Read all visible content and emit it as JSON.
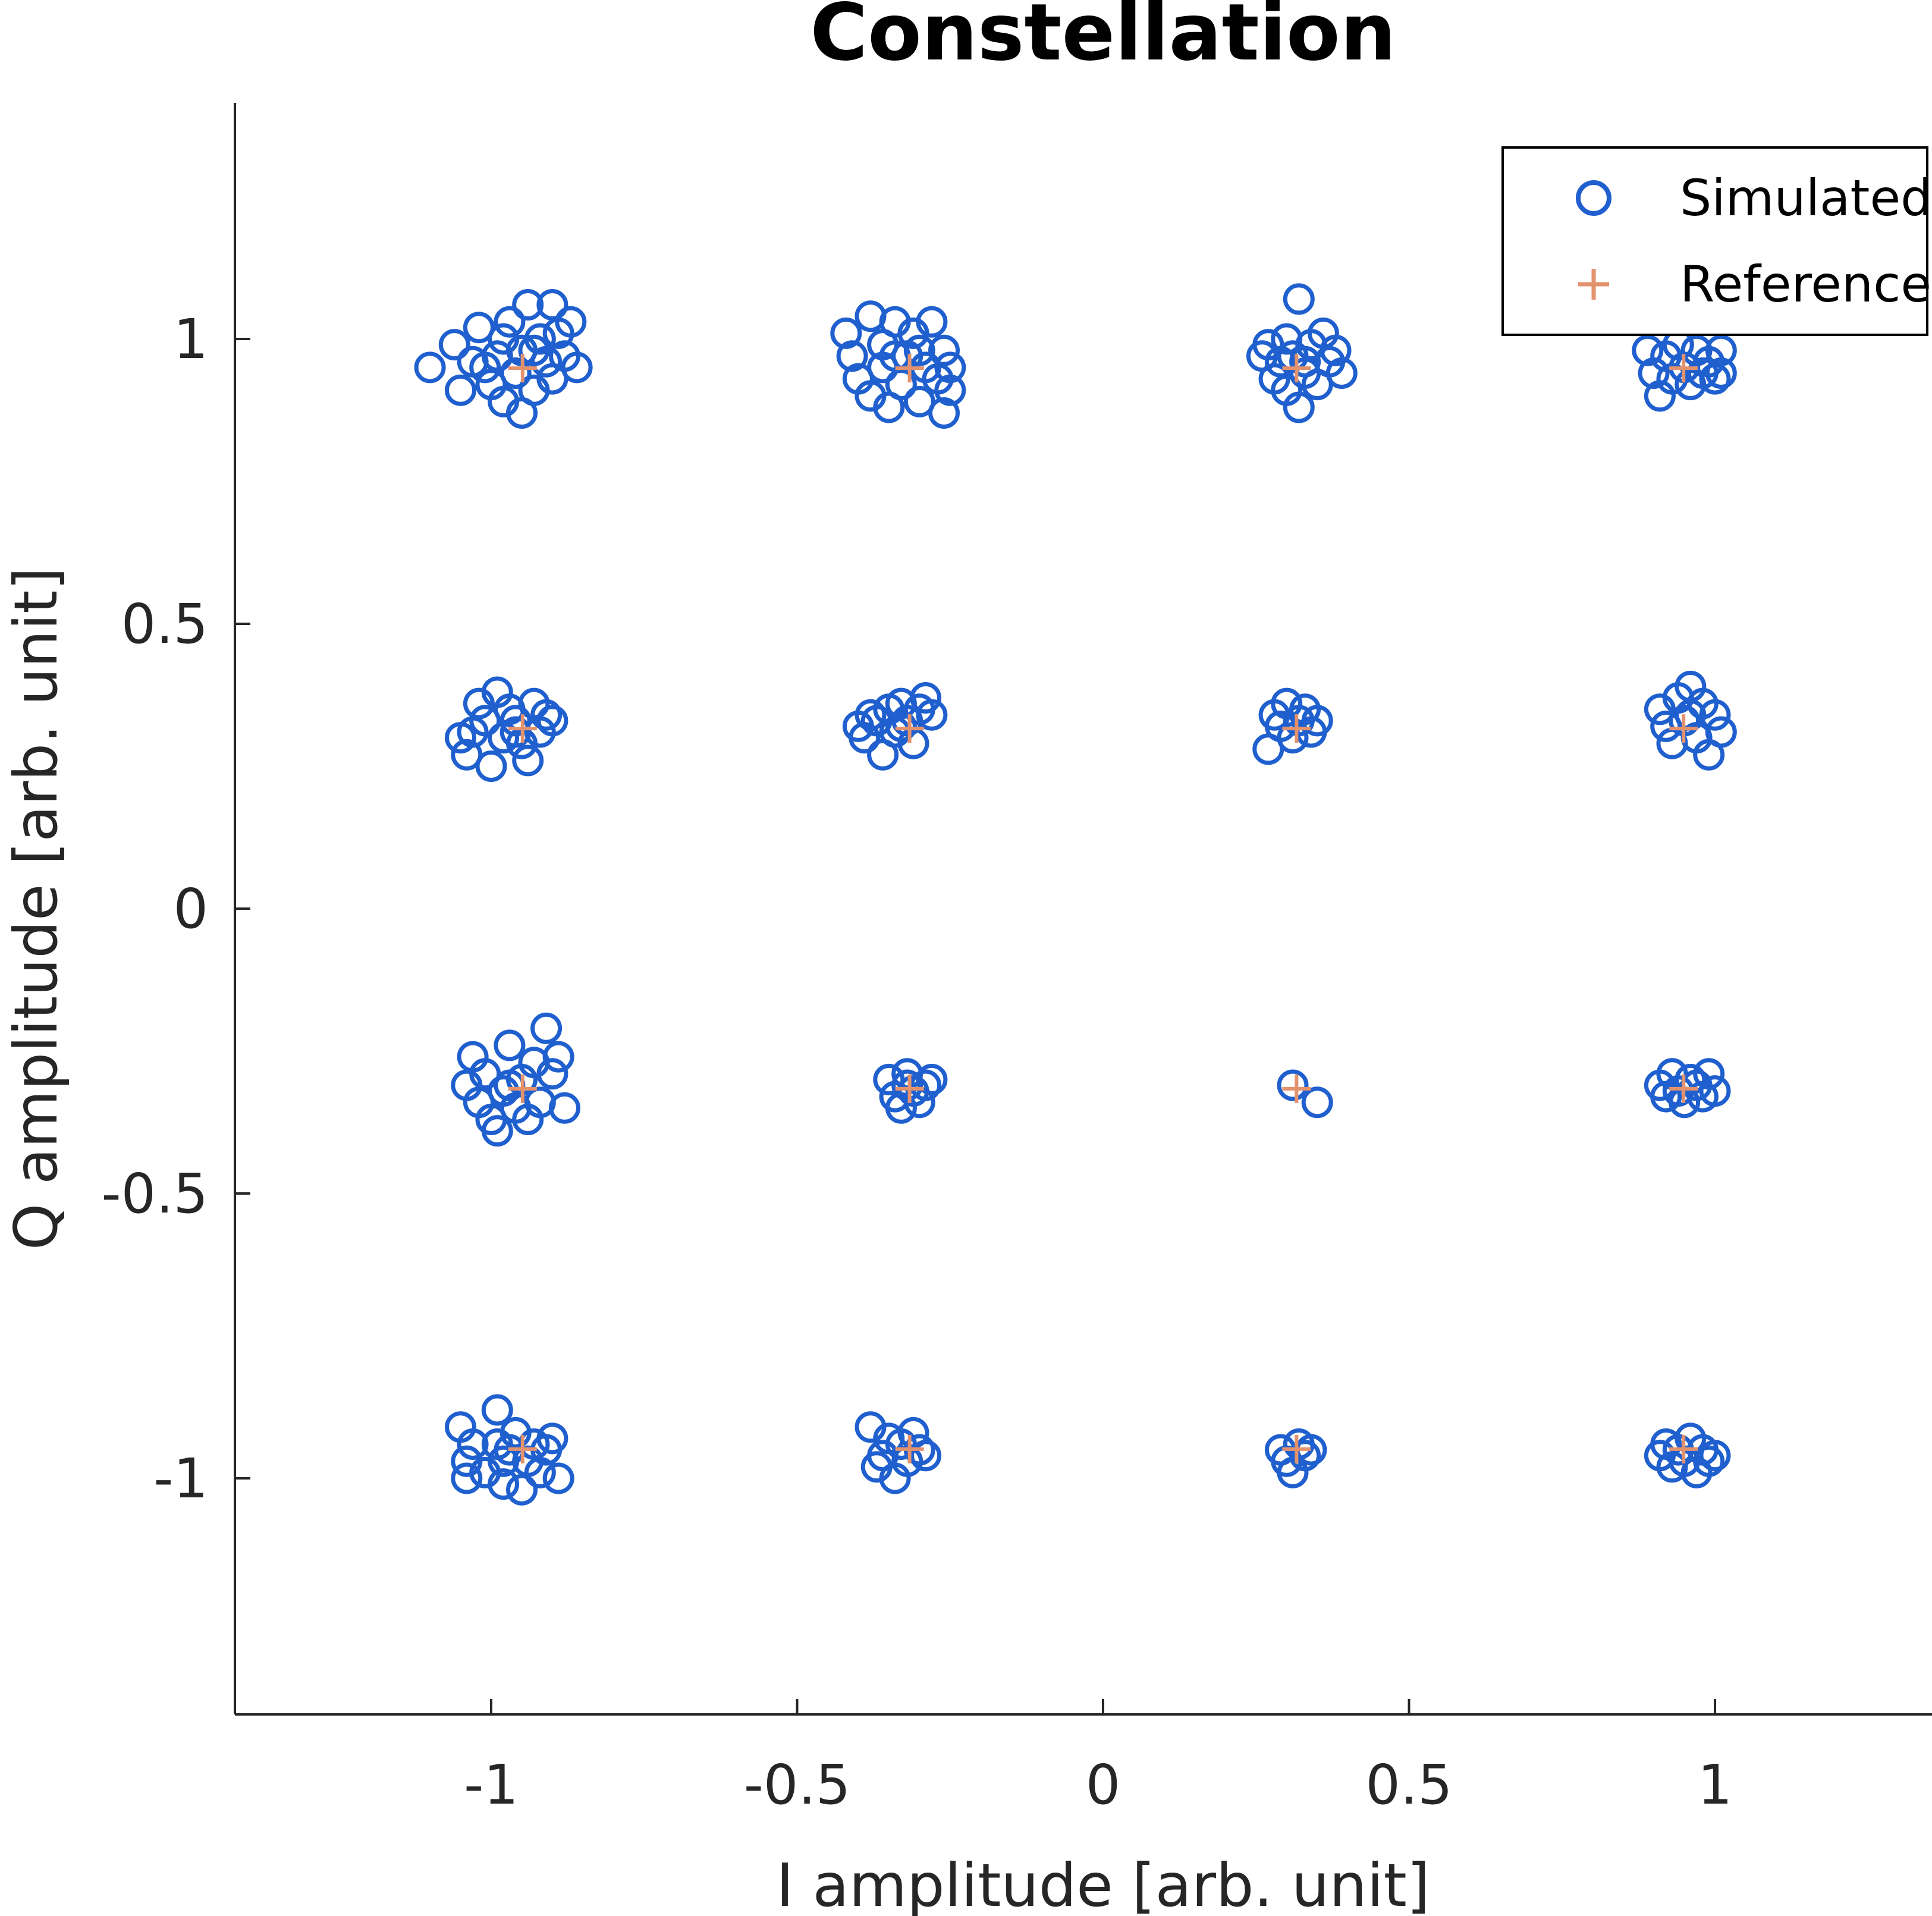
{
  "chart_data": {
    "type": "scatter",
    "title": "Constellation",
    "xlabel": "I amplitude [arb. unit]",
    "ylabel": "Q amplitude [arb. unit]",
    "xlim": [
      -1.42,
      1.42
    ],
    "ylim": [
      -1.42,
      1.42
    ],
    "xticks": [
      -1,
      -0.5,
      0,
      0.5,
      1
    ],
    "yticks": [
      -1,
      -0.5,
      0,
      0.5,
      1
    ],
    "xtick_labels": [
      "-1",
      "-0.5",
      "0",
      "0.5",
      "1"
    ],
    "ytick_labels": [
      "-1",
      "-0.5",
      "0",
      "0.5",
      "1"
    ],
    "grid": false,
    "legend_position": "top-right",
    "series": [
      {
        "name": "Simulated",
        "marker": "circle-open",
        "color": "#1f5fce",
        "points": [
          [
            -1.1,
            0.95
          ],
          [
            -1.06,
            0.99
          ],
          [
            -1.05,
            0.91
          ],
          [
            -1.03,
            0.96
          ],
          [
            -1.02,
            1.02
          ],
          [
            -1.0,
            0.92
          ],
          [
            -0.99,
            0.97
          ],
          [
            -0.98,
            0.89
          ],
          [
            -0.97,
            1.03
          ],
          [
            -0.96,
            0.94
          ],
          [
            -0.95,
            0.98
          ],
          [
            -0.95,
            0.87
          ],
          [
            -0.94,
            1.06
          ],
          [
            -0.93,
            0.91
          ],
          [
            -0.92,
            1.0
          ],
          [
            -0.91,
            0.96
          ],
          [
            -0.9,
            1.06
          ],
          [
            -0.9,
            0.93
          ],
          [
            -0.89,
            1.01
          ],
          [
            -0.88,
            0.97
          ],
          [
            -0.87,
            1.03
          ],
          [
            -0.86,
            0.95
          ],
          [
            -0.98,
            1.0
          ],
          [
            -1.01,
            0.95
          ],
          [
            -0.93,
            0.98
          ],
          [
            -0.42,
            1.01
          ],
          [
            -0.41,
            0.97
          ],
          [
            -0.4,
            0.93
          ],
          [
            -0.38,
            1.04
          ],
          [
            -0.38,
            0.9
          ],
          [
            -0.36,
            0.99
          ],
          [
            -0.36,
            0.95
          ],
          [
            -0.35,
            0.88
          ],
          [
            -0.34,
            1.03
          ],
          [
            -0.33,
            0.92
          ],
          [
            -0.32,
            0.97
          ],
          [
            -0.31,
            1.01
          ],
          [
            -0.3,
            0.89
          ],
          [
            -0.29,
            0.95
          ],
          [
            -0.28,
            1.03
          ],
          [
            -0.27,
            0.93
          ],
          [
            -0.26,
            0.87
          ],
          [
            -0.26,
            0.98
          ],
          [
            -0.25,
            0.91
          ],
          [
            -0.25,
            0.95
          ],
          [
            -0.34,
            0.97
          ],
          [
            -0.3,
            0.98
          ],
          [
            0.26,
            0.97
          ],
          [
            0.27,
            0.99
          ],
          [
            0.28,
            0.93
          ],
          [
            0.29,
            0.96
          ],
          [
            0.3,
            1.0
          ],
          [
            0.3,
            0.91
          ],
          [
            0.31,
            0.97
          ],
          [
            0.32,
            1.07
          ],
          [
            0.32,
            0.88
          ],
          [
            0.33,
            0.94
          ],
          [
            0.34,
            0.99
          ],
          [
            0.35,
            0.92
          ],
          [
            0.36,
            1.01
          ],
          [
            0.37,
            0.96
          ],
          [
            0.38,
            0.98
          ],
          [
            0.39,
            0.94
          ],
          [
            0.33,
            0.96
          ],
          [
            0.89,
            0.98
          ],
          [
            0.9,
            0.94
          ],
          [
            0.91,
            0.9
          ],
          [
            0.92,
            0.97
          ],
          [
            0.93,
            0.93
          ],
          [
            0.94,
            0.99
          ],
          [
            0.95,
            0.95
          ],
          [
            0.96,
            0.92
          ],
          [
            0.97,
            0.98
          ],
          [
            0.98,
            0.94
          ],
          [
            0.99,
            0.96
          ],
          [
            1.0,
            0.93
          ],
          [
            1.01,
            0.98
          ],
          [
            1.01,
            0.94
          ],
          [
            -1.05,
            0.3
          ],
          [
            -1.04,
            0.27
          ],
          [
            -1.03,
            0.31
          ],
          [
            -1.02,
            0.36
          ],
          [
            -1.01,
            0.33
          ],
          [
            -1.0,
            0.25
          ],
          [
            -0.99,
            0.38
          ],
          [
            -0.98,
            0.3
          ],
          [
            -0.97,
            0.35
          ],
          [
            -0.96,
            0.33
          ],
          [
            -0.95,
            0.29
          ],
          [
            -0.94,
            0.26
          ],
          [
            -0.93,
            0.36
          ],
          [
            -0.92,
            0.31
          ],
          [
            -0.91,
            0.34
          ],
          [
            -0.9,
            0.33
          ],
          [
            -0.96,
            0.31
          ],
          [
            -0.4,
            0.32
          ],
          [
            -0.39,
            0.3
          ],
          [
            -0.38,
            0.34
          ],
          [
            -0.37,
            0.33
          ],
          [
            -0.36,
            0.27
          ],
          [
            -0.35,
            0.35
          ],
          [
            -0.34,
            0.31
          ],
          [
            -0.33,
            0.36
          ],
          [
            -0.32,
            0.33
          ],
          [
            -0.31,
            0.29
          ],
          [
            -0.3,
            0.35
          ],
          [
            -0.29,
            0.37
          ],
          [
            -0.28,
            0.34
          ],
          [
            -0.33,
            0.32
          ],
          [
            0.27,
            0.28
          ],
          [
            0.28,
            0.34
          ],
          [
            0.29,
            0.32
          ],
          [
            0.3,
            0.36
          ],
          [
            0.31,
            0.3
          ],
          [
            0.32,
            0.33
          ],
          [
            0.33,
            0.35
          ],
          [
            0.34,
            0.31
          ],
          [
            0.35,
            0.33
          ],
          [
            0.91,
            0.35
          ],
          [
            0.92,
            0.32
          ],
          [
            0.93,
            0.29
          ],
          [
            0.94,
            0.37
          ],
          [
            0.95,
            0.33
          ],
          [
            0.96,
            0.39
          ],
          [
            0.97,
            0.3
          ],
          [
            0.98,
            0.36
          ],
          [
            0.99,
            0.27
          ],
          [
            1.0,
            0.34
          ],
          [
            1.01,
            0.31
          ],
          [
            0.96,
            0.34
          ],
          [
            -1.04,
            -0.31
          ],
          [
            -1.03,
            -0.26
          ],
          [
            -1.02,
            -0.34
          ],
          [
            -1.01,
            -0.29
          ],
          [
            -1.0,
            -0.37
          ],
          [
            -0.99,
            -0.39
          ],
          [
            -0.98,
            -0.32
          ],
          [
            -0.97,
            -0.24
          ],
          [
            -0.96,
            -0.35
          ],
          [
            -0.95,
            -0.3
          ],
          [
            -0.94,
            -0.37
          ],
          [
            -0.93,
            -0.27
          ],
          [
            -0.92,
            -0.34
          ],
          [
            -0.91,
            -0.21
          ],
          [
            -0.9,
            -0.29
          ],
          [
            -0.89,
            -0.26
          ],
          [
            -0.88,
            -0.35
          ],
          [
            -0.97,
            -0.31
          ],
          [
            -0.35,
            -0.3
          ],
          [
            -0.34,
            -0.33
          ],
          [
            -0.33,
            -0.35
          ],
          [
            -0.32,
            -0.29
          ],
          [
            -0.31,
            -0.32
          ],
          [
            -0.3,
            -0.34
          ],
          [
            -0.29,
            -0.31
          ],
          [
            -0.28,
            -0.3
          ],
          [
            -0.32,
            -0.31
          ],
          [
            0.31,
            -0.31
          ],
          [
            0.35,
            -0.34
          ],
          [
            0.91,
            -0.31
          ],
          [
            0.92,
            -0.33
          ],
          [
            0.93,
            -0.29
          ],
          [
            0.94,
            -0.32
          ],
          [
            0.95,
            -0.34
          ],
          [
            0.96,
            -0.3
          ],
          [
            0.97,
            -0.31
          ],
          [
            0.98,
            -0.33
          ],
          [
            0.99,
            -0.29
          ],
          [
            1.0,
            -0.32
          ],
          [
            -1.05,
            -0.91
          ],
          [
            -1.04,
            -0.97
          ],
          [
            -1.04,
            -1.0
          ],
          [
            -1.03,
            -0.94
          ],
          [
            -1.01,
            -0.99
          ],
          [
            -0.99,
            -0.88
          ],
          [
            -0.99,
            -0.94
          ],
          [
            -0.98,
            -0.97
          ],
          [
            -0.98,
            -1.01
          ],
          [
            -0.96,
            -0.92
          ],
          [
            -0.95,
            -1.02
          ],
          [
            -0.94,
            -0.97
          ],
          [
            -0.93,
            -0.94
          ],
          [
            -0.92,
            -0.99
          ],
          [
            -0.91,
            -0.95
          ],
          [
            -0.9,
            -0.93
          ],
          [
            -0.89,
            -1.0
          ],
          [
            -0.97,
            -0.95
          ],
          [
            -0.38,
            -0.91
          ],
          [
            -0.37,
            -0.98
          ],
          [
            -0.36,
            -0.96
          ],
          [
            -0.35,
            -0.93
          ],
          [
            -0.34,
            -1.0
          ],
          [
            -0.33,
            -0.94
          ],
          [
            -0.32,
            -0.97
          ],
          [
            -0.31,
            -0.92
          ],
          [
            -0.3,
            -0.95
          ],
          [
            -0.29,
            -0.96
          ],
          [
            0.29,
            -0.95
          ],
          [
            0.3,
            -0.97
          ],
          [
            0.31,
            -0.99
          ],
          [
            0.32,
            -0.94
          ],
          [
            0.33,
            -0.96
          ],
          [
            0.34,
            -0.95
          ],
          [
            0.91,
            -0.96
          ],
          [
            0.92,
            -0.94
          ],
          [
            0.93,
            -0.98
          ],
          [
            0.94,
            -0.95
          ],
          [
            0.95,
            -0.97
          ],
          [
            0.96,
            -0.93
          ],
          [
            0.97,
            -0.99
          ],
          [
            0.98,
            -0.95
          ],
          [
            0.99,
            -0.97
          ],
          [
            1.0,
            -0.96
          ]
        ]
      },
      {
        "name": "Reference",
        "marker": "plus",
        "color": "#e3926e",
        "points": [
          [
            -0.9487,
            0.9487
          ],
          [
            -0.3162,
            0.9487
          ],
          [
            0.3162,
            0.9487
          ],
          [
            0.9487,
            0.9487
          ],
          [
            -0.9487,
            0.3162
          ],
          [
            -0.3162,
            0.3162
          ],
          [
            0.3162,
            0.3162
          ],
          [
            0.9487,
            0.3162
          ],
          [
            -0.9487,
            -0.3162
          ],
          [
            -0.3162,
            -0.3162
          ],
          [
            0.3162,
            -0.3162
          ],
          [
            0.9487,
            -0.3162
          ],
          [
            -0.9487,
            -0.9487
          ],
          [
            -0.3162,
            -0.9487
          ],
          [
            0.3162,
            -0.9487
          ],
          [
            0.9487,
            -0.9487
          ]
        ]
      }
    ]
  }
}
